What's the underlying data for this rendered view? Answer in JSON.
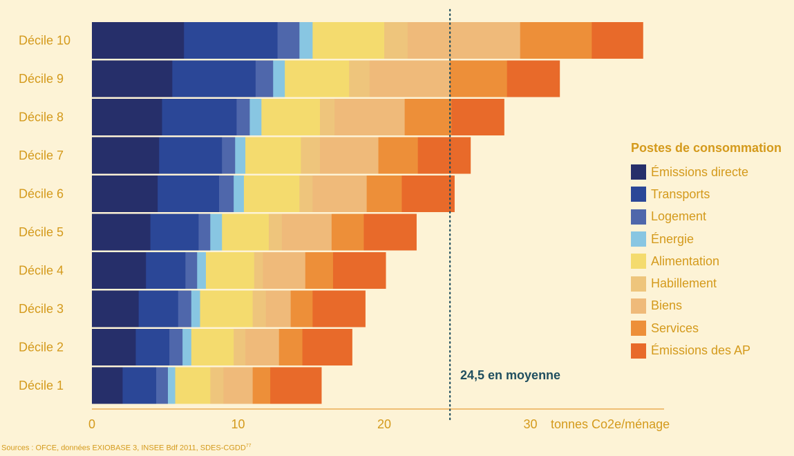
{
  "chart_data": {
    "type": "bar",
    "orientation": "horizontal",
    "stacked": true,
    "categories": [
      "Décile 10",
      "Décile 9",
      "Décile 8",
      "Décile 7",
      "Décile 6",
      "Décile 5",
      "Décile 4",
      "Décile 3",
      "Décile 2",
      "Décile 1"
    ],
    "series": [
      {
        "name": "Émissions directe",
        "color": "#262f6a",
        "values": [
          6.3,
          5.5,
          4.8,
          4.6,
          4.5,
          4.0,
          3.7,
          3.2,
          3.0,
          2.1
        ]
      },
      {
        "name": "Transports",
        "color": "#2b4797",
        "values": [
          6.4,
          5.7,
          5.1,
          4.3,
          4.2,
          3.3,
          2.7,
          2.7,
          2.3,
          2.3
        ]
      },
      {
        "name": "Logement",
        "color": "#4f67ab",
        "values": [
          1.5,
          1.2,
          0.9,
          0.9,
          1.0,
          0.8,
          0.8,
          0.9,
          0.9,
          0.8
        ]
      },
      {
        "name": "Énergie",
        "color": "#88c6e2",
        "values": [
          0.9,
          0.8,
          0.8,
          0.7,
          0.7,
          0.8,
          0.6,
          0.6,
          0.6,
          0.5
        ]
      },
      {
        "name": "Alimentation",
        "color": "#f4db6e",
        "values": [
          4.9,
          4.4,
          4.0,
          3.8,
          3.8,
          3.2,
          3.3,
          3.6,
          2.9,
          2.4
        ]
      },
      {
        "name": "Habillement",
        "color": "#eec57c",
        "values": [
          1.6,
          1.4,
          1.0,
          1.3,
          0.9,
          0.9,
          0.6,
          0.9,
          0.8,
          0.9
        ]
      },
      {
        "name": "Biens",
        "color": "#efba7a",
        "values": [
          7.7,
          5.5,
          4.8,
          4.0,
          3.7,
          3.4,
          2.9,
          1.7,
          2.3,
          2.0
        ]
      },
      {
        "name": "Services",
        "color": "#ed8f39",
        "values": [
          4.9,
          3.9,
          3.2,
          2.7,
          2.4,
          2.2,
          1.9,
          1.5,
          1.6,
          1.2
        ]
      },
      {
        "name": "Émissions des AP",
        "color": "#e86a2a",
        "values": [
          3.5,
          3.6,
          3.6,
          3.6,
          3.6,
          3.6,
          3.6,
          3.6,
          3.4,
          3.5
        ]
      }
    ],
    "xlim": [
      0,
      37
    ],
    "x_ticks": [
      "0",
      "10",
      "20",
      "30"
    ],
    "x_unit": "tonnes Co2e/ménage",
    "reference_line": {
      "value": 24.5,
      "label": "24,5 en moyenne"
    },
    "legend": {
      "title": "Postes de consommation",
      "position": "right"
    },
    "grid": false
  },
  "source": {
    "text": "Sources : OFCE, données EXIOBASE 3, INSEE Bdf 2011, SDES-CGDD",
    "note": "77"
  }
}
